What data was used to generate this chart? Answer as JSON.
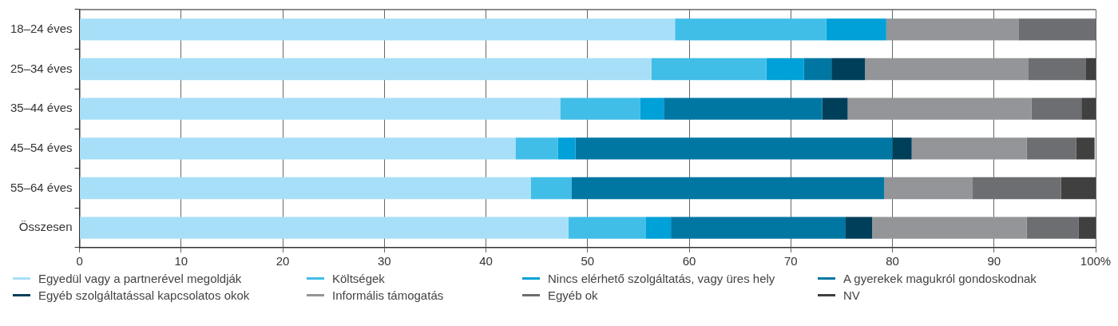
{
  "chart_data": {
    "type": "bar",
    "orientation": "horizontal",
    "stacked": true,
    "categories": [
      "18–24 éves",
      "25–34 éves",
      "35–44 éves",
      "45–54 éves",
      "55–64 éves",
      "Összesen"
    ],
    "series": [
      {
        "name": "Egyedül vagy a partnerével megoldják",
        "color": "#a8dff8",
        "values": [
          58.6,
          56.3,
          47.3,
          42.9,
          44.4,
          48.1
        ]
      },
      {
        "name": "Költségek",
        "color": "#41bee8",
        "values": [
          14.9,
          11.3,
          7.9,
          4.2,
          4.0,
          7.6
        ]
      },
      {
        "name": "Nincs elérhető szolgáltatás, vagy üres hely",
        "color": "#00a0d8",
        "values": [
          5.9,
          3.7,
          2.3,
          1.7,
          0,
          2.5
        ]
      },
      {
        "name": "A gyerekek magukról gondoskodnak",
        "color": "#0077a3",
        "values": [
          0,
          2.7,
          15.6,
          31.2,
          30.8,
          17.2
        ]
      },
      {
        "name": "Egyéb szolgáltatással kapcsolatos okok",
        "color": "#003f5a",
        "values": [
          0,
          3.3,
          2.5,
          1.9,
          0,
          2.6
        ]
      },
      {
        "name": "Informális támogatás",
        "color": "#939598",
        "values": [
          13.0,
          16.1,
          18.1,
          11.3,
          8.7,
          15.2
        ]
      },
      {
        "name": "Egyéb ok",
        "color": "#6d6e71",
        "values": [
          7.6,
          5.6,
          4.9,
          4.9,
          8.7,
          5.1
        ]
      },
      {
        "name": "NV",
        "color": "#404041",
        "values": [
          0,
          1.0,
          1.4,
          1.8,
          3.4,
          1.7
        ]
      }
    ],
    "xlim": [
      0,
      100
    ],
    "xticks": [
      0,
      10,
      20,
      30,
      40,
      50,
      60,
      70,
      80,
      90,
      {
        "value": 100,
        "label": "100%"
      }
    ],
    "grid": "x",
    "legend": "bottom"
  }
}
